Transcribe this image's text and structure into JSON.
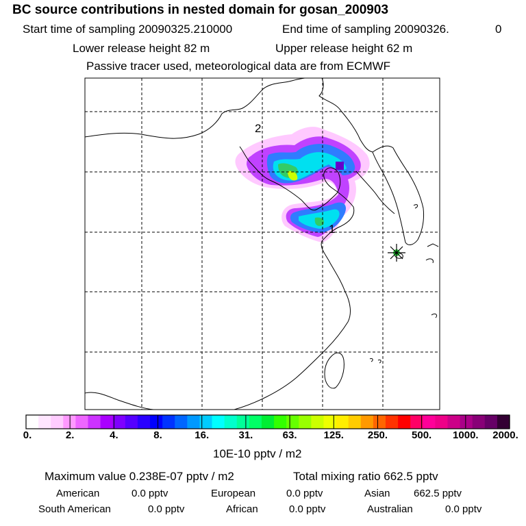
{
  "header": {
    "title": "BC  source contributions in nested domain for gosan_200903",
    "start_label": "Start time of sampling 20090325.210000",
    "end_label": "End time of sampling 20090326.",
    "end_value": "0",
    "lower_release": "Lower release height   82 m",
    "upper_release": "Upper release height   62 m",
    "tracer_note": "Passive tracer used, meteorological data are from ECMWF"
  },
  "map": {
    "labels": {
      "marker_2": "2",
      "marker_1": "1"
    },
    "receptor_icon": "star-burst-icon",
    "plume_colors": [
      "#ff66ff",
      "#cc33ff",
      "#9900ff",
      "#0066ff",
      "#00ffff",
      "#33cc66",
      "#ccff00"
    ]
  },
  "legend": {
    "ticks": [
      "0.",
      "2.",
      "4.",
      "8.",
      "16.",
      "31.",
      "63.",
      "125.",
      "250.",
      "500.",
      "1000.",
      "2000."
    ],
    "colors": [
      "#ffffff",
      "#ffe6ff",
      "#ffccff",
      "#ff99ff",
      "#ee66ff",
      "#cc33ff",
      "#aa00ff",
      "#7f00ff",
      "#5500ff",
      "#2a00ff",
      "#0000ff",
      "#0033ff",
      "#0066ff",
      "#0099ff",
      "#00ccff",
      "#00ffff",
      "#00ffcc",
      "#00ff99",
      "#00ff66",
      "#00ee33",
      "#33ff00",
      "#66ff00",
      "#99ff00",
      "#ccff00",
      "#eeff00",
      "#ffee00",
      "#ffcc00",
      "#ff9900",
      "#ff6600",
      "#ff3300",
      "#ff0000",
      "#ff0066",
      "#ff0099",
      "#ee0088",
      "#cc0088",
      "#aa0088",
      "#880077",
      "#660066",
      "#330033"
    ],
    "units": "10E-10 pptv / m2"
  },
  "summary": {
    "max_value": "Maximum value  0.238E-07 pptv / m2",
    "total_mixing": "Total mixing ratio     662.5 pptv",
    "sources": [
      {
        "name": "American",
        "value": "0.0 pptv"
      },
      {
        "name": "European",
        "value": "0.0 pptv"
      },
      {
        "name": "Asian",
        "value": "662.5 pptv"
      },
      {
        "name": "South American",
        "value": "0.0 pptv"
      },
      {
        "name": "African",
        "value": "0.0 pptv"
      },
      {
        "name": "Australian",
        "value": "0.0 pptv"
      }
    ]
  }
}
